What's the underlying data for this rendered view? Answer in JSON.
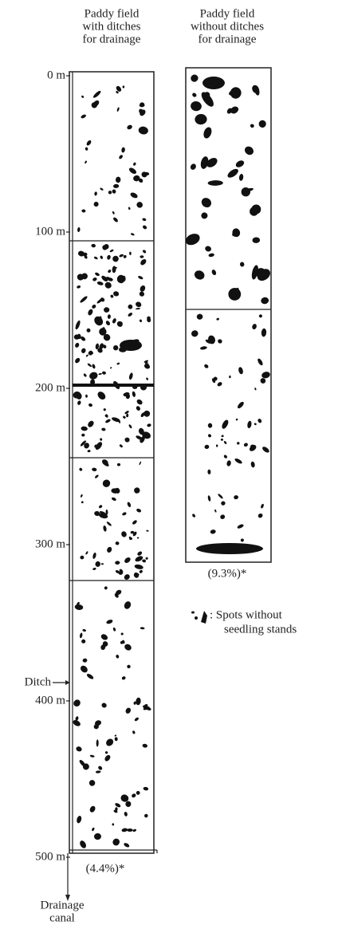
{
  "columns": [
    {
      "title": [
        "Paddy field",
        "with ditches",
        "for drainage"
      ],
      "percent": "(4.4%)*"
    },
    {
      "title": [
        "Paddy field",
        "without ditches",
        "for drainage"
      ],
      "percent": "(9.3%)*"
    }
  ],
  "axis_labels": [
    "0 m",
    "100 m",
    "200 m",
    "300 m",
    "400 m",
    "500 m"
  ],
  "ditch_label": "Ditch",
  "canal_label": [
    "Drainage",
    "canal"
  ],
  "legend": [
    ": Spots without",
    "seedling stands"
  ]
}
